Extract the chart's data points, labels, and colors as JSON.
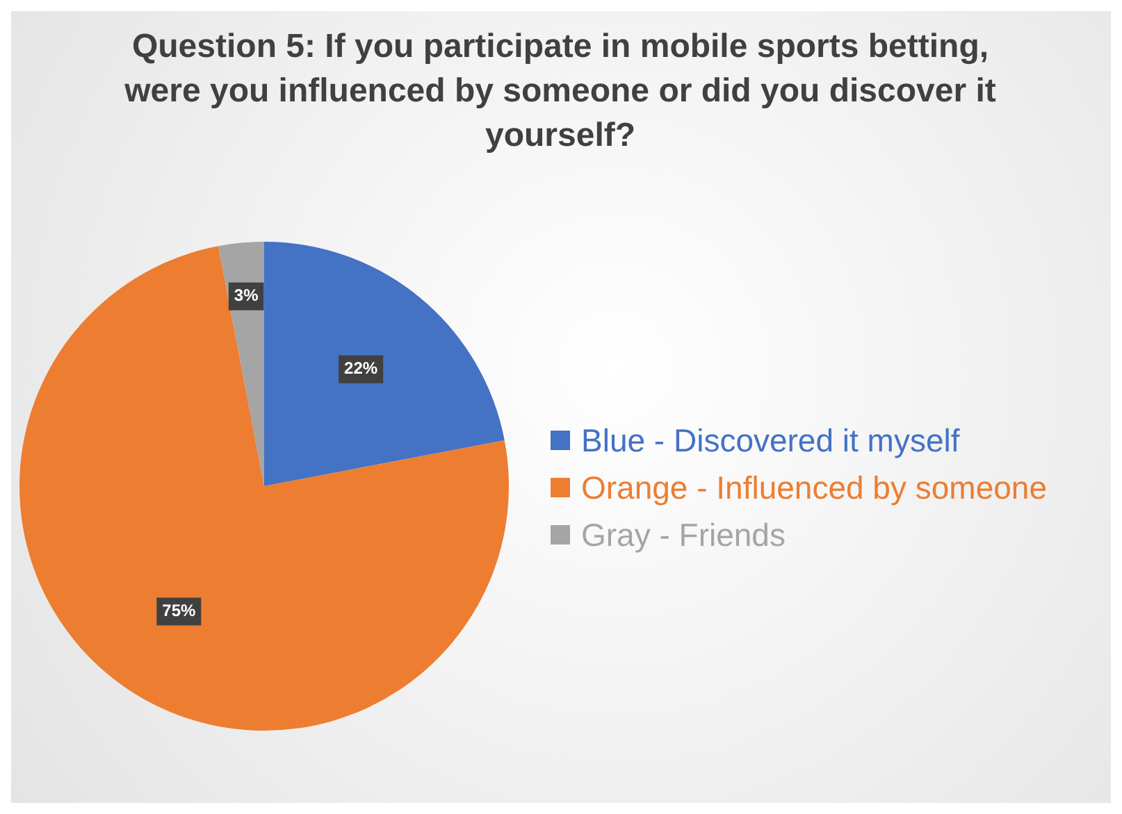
{
  "chart_data": {
    "type": "pie",
    "title": "Question 5: If you participate in mobile sports betting, were you influenced by someone or did you discover it yourself?",
    "categories": [
      "Blue - Discovered it myself",
      "Orange - Influenced by someone",
      "Gray - Friends"
    ],
    "values": [
      22,
      75,
      3
    ],
    "colors": [
      "#4472c4",
      "#ed7d31",
      "#a5a5a5"
    ],
    "value_labels": [
      "22%",
      "75%",
      "3%"
    ],
    "legend": "right"
  }
}
